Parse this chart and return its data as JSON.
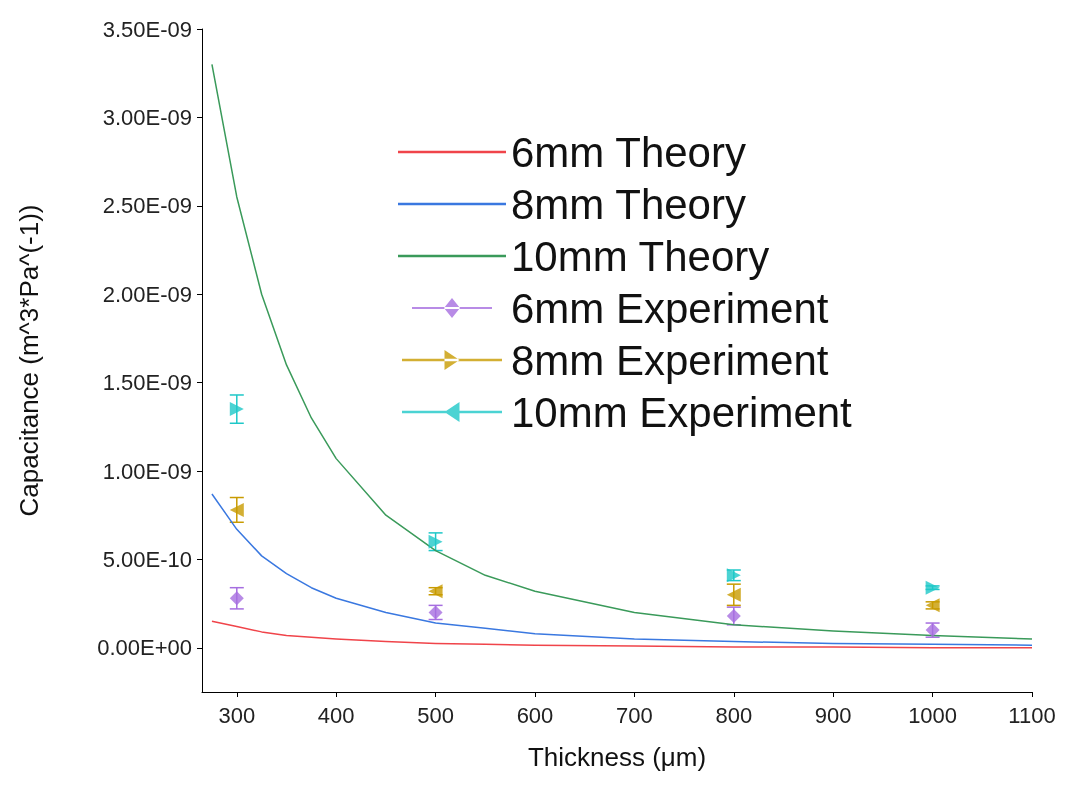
{
  "chart_data": {
    "type": "line",
    "xlabel": "Thickness (μm)",
    "ylabel": "Capacitance (m^3*Pa^(-1))",
    "xlim": [
      265,
      1100
    ],
    "xticks": [
      300,
      400,
      500,
      600,
      700,
      800,
      900,
      1000,
      1100
    ],
    "ylim": [
      -2.5e-10,
      3.5e-09
    ],
    "yticks": [
      {
        "value": 0,
        "label": "0.00E+00"
      },
      {
        "value": 5e-10,
        "label": "5.00E-10"
      },
      {
        "value": 1e-09,
        "label": "1.00E-09"
      },
      {
        "value": 1.5e-09,
        "label": "1.50E-09"
      },
      {
        "value": 2e-09,
        "label": "2.00E-09"
      },
      {
        "value": 2.5e-09,
        "label": "2.50E-09"
      },
      {
        "value": 3e-09,
        "label": "3.00E-09"
      },
      {
        "value": 3.5e-09,
        "label": "3.50E-09"
      }
    ],
    "grid": false,
    "legend": "top right",
    "series": [
      {
        "name": "6mm Theory",
        "color": "#f0444a",
        "marker": "none",
        "x": [
          275,
          300,
          325,
          350,
          375,
          400,
          450,
          500,
          550,
          600,
          700,
          800,
          900,
          1000,
          1100
        ],
        "values": [
          1.5e-10,
          1.2e-10,
          9e-11,
          7e-11,
          6e-11,
          5e-11,
          3.5e-11,
          2.5e-11,
          2e-11,
          1.5e-11,
          1e-11,
          5e-12,
          5e-12,
          0,
          0
        ]
      },
      {
        "name": "8mm Theory",
        "color": "#3a78e0",
        "marker": "none",
        "x": [
          275,
          300,
          325,
          350,
          375,
          400,
          450,
          500,
          550,
          600,
          700,
          800,
          900,
          1000,
          1100
        ],
        "values": [
          8.7e-10,
          6.7e-10,
          5.2e-10,
          4.2e-10,
          3.4e-10,
          2.8e-10,
          2e-10,
          1.4e-10,
          1.1e-10,
          8e-11,
          5e-11,
          3.5e-11,
          2.5e-11,
          2e-11,
          1.5e-11
        ]
      },
      {
        "name": "10mm Theory",
        "color": "#3a9a5a",
        "marker": "none",
        "x": [
          275,
          300,
          325,
          350,
          375,
          400,
          450,
          500,
          550,
          600,
          700,
          800,
          900,
          1000,
          1100
        ],
        "values": [
          3.3e-09,
          2.55e-09,
          2e-09,
          1.6e-09,
          1.3e-09,
          1.07e-09,
          7.5e-10,
          5.5e-10,
          4.1e-10,
          3.2e-10,
          2e-10,
          1.3e-10,
          9.5e-11,
          7e-11,
          5e-11
        ]
      },
      {
        "name": "6mm Experiment",
        "type": "scatter",
        "color": "#a66ee0",
        "marker": "diamond",
        "x": [
          300,
          500,
          800,
          1000
        ],
        "values": [
          2.8e-10,
          2e-10,
          1.8e-10,
          1e-10
        ],
        "errors": [
          6e-11,
          4e-11,
          5e-11,
          4e-11
        ]
      },
      {
        "name": "8mm Experiment",
        "type": "scatter",
        "color": "#c89b00",
        "marker": "triangle",
        "x": [
          300,
          500,
          800,
          1000
        ],
        "values": [
          7.8e-10,
          3.2e-10,
          3e-10,
          2.4e-10
        ],
        "errors": [
          7e-11,
          2e-11,
          6e-11,
          2e-11
        ]
      },
      {
        "name": "10mm Experiment",
        "type": "scatter",
        "color": "#1ec8c8",
        "marker": "triangle",
        "x": [
          300,
          500,
          800,
          1000
        ],
        "values": [
          1.35e-09,
          6e-10,
          4.1e-10,
          3.4e-10
        ],
        "errors": [
          8e-11,
          5e-11,
          3e-11,
          1e-11
        ]
      }
    ]
  }
}
